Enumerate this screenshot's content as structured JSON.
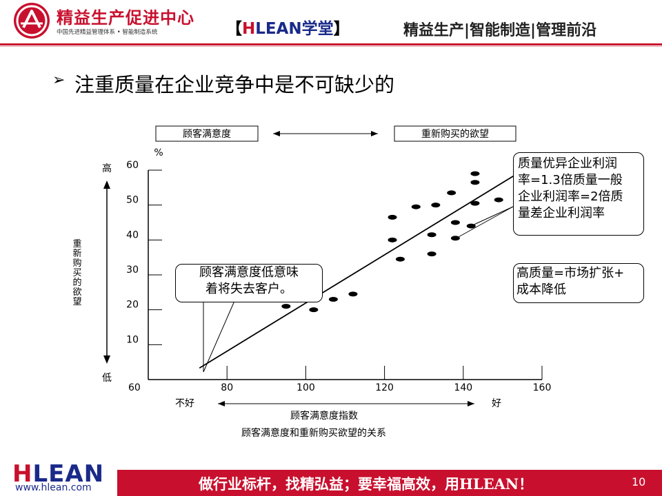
{
  "header": {
    "org_name": "精益生产促进中心",
    "org_sub": "中国先进精益管理体系 • 智能制造系统",
    "brand_open": "【",
    "brand_h": "H",
    "brand_lean": "LEAN",
    "brand_xt": "学堂",
    "brand_close": "】",
    "slogan": "精益生产|智能制造|管理前沿",
    "colors": {
      "accent": "#c8102e",
      "brand_blue": "#1a2a8a"
    }
  },
  "title": {
    "bullet": "➢",
    "text": "注重质量在企业竞争中是不可缺少的"
  },
  "chart_data": {
    "type": "scatter",
    "title": "顾客满意度和重新购买欲望的关系",
    "top_labels": {
      "left": "顾客满意度",
      "right": "重新购买的欲望"
    },
    "xlabel": "顾客满意度指数",
    "x_end_labels": {
      "low": "不好",
      "high": "好"
    },
    "ylabel": "重新购买的欲望",
    "y_end_labels": {
      "high": "高",
      "low": "低"
    },
    "y_unit": "%",
    "x_ticks": [
      60,
      80,
      100,
      120,
      140,
      160
    ],
    "y_ticks": [
      10,
      20,
      30,
      40,
      50,
      60
    ],
    "xlim": [
      60,
      160
    ],
    "ylim": [
      0,
      60
    ],
    "points": [
      {
        "x": 95,
        "y": 21
      },
      {
        "x": 102,
        "y": 20
      },
      {
        "x": 102,
        "y": 26.5
      },
      {
        "x": 107,
        "y": 23
      },
      {
        "x": 112,
        "y": 24.5
      },
      {
        "x": 122,
        "y": 40
      },
      {
        "x": 122,
        "y": 46.5
      },
      {
        "x": 124,
        "y": 34.5
      },
      {
        "x": 128,
        "y": 49.5
      },
      {
        "x": 132,
        "y": 41.5
      },
      {
        "x": 132,
        "y": 36
      },
      {
        "x": 133,
        "y": 50
      },
      {
        "x": 137,
        "y": 53.5
      },
      {
        "x": 138,
        "y": 45
      },
      {
        "x": 138,
        "y": 40.5
      },
      {
        "x": 142,
        "y": 44
      },
      {
        "x": 143,
        "y": 59
      },
      {
        "x": 143,
        "y": 56.5
      },
      {
        "x": 143,
        "y": 50.5
      },
      {
        "x": 149,
        "y": 51.5
      }
    ],
    "trend_line": [
      {
        "x": 73,
        "y": 3.3
      },
      {
        "x": 153,
        "y": 58.5
      }
    ],
    "grid": false
  },
  "callouts": {
    "left": [
      "顾客满意度低意味",
      "着将失去客户。"
    ],
    "right_top": [
      "质量优异企业利润",
      "率=1.3倍质量一般",
      "企业利润率=2倍质",
      "量差企业利润率"
    ],
    "right_mid": [
      "高质量=市场扩张+",
      "成本降低"
    ]
  },
  "footer": {
    "logo_h": "H",
    "logo_rest": "LEAN",
    "url": "www.hlean.com",
    "slogan": "做行业标杆，找精弘益；要幸福高效，用HLEAN！",
    "page_number": "10"
  }
}
